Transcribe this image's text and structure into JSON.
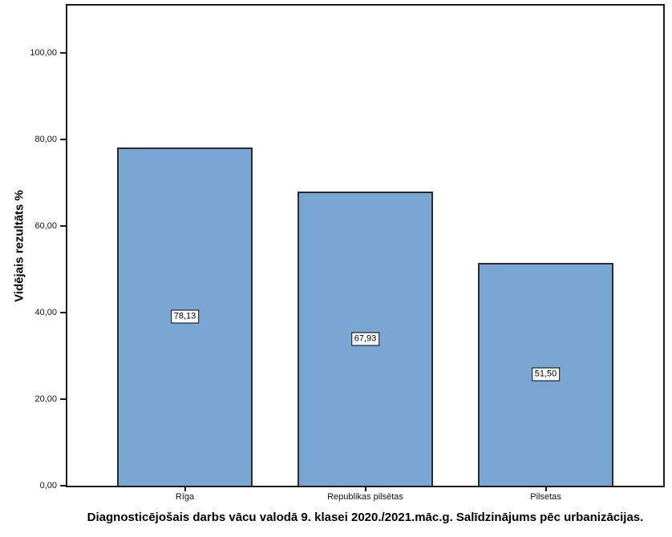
{
  "chart_data": {
    "type": "bar",
    "title": "Diagnosticējošais darbs vācu valodā 9. klasei 2020./2021.māc.g. Salīdzinājums pēc urbanizācijas.",
    "ylabel": "Vidējais rezultāts %",
    "xlabel": "",
    "categories": [
      "Rīga",
      "Republikas pilsētas",
      "Pilsetas"
    ],
    "values": [
      78.13,
      67.93,
      51.5
    ],
    "value_labels": [
      "78,13",
      "67,93",
      "51,50"
    ],
    "ylim": [
      0,
      111
    ],
    "yticks": [
      0,
      20,
      40,
      60,
      80,
      100
    ],
    "ytick_labels": [
      "0,00",
      "20,00",
      "40,00",
      "60,00",
      "80,00",
      "100,00"
    ],
    "grid": false,
    "legend": null,
    "bar_color": "#7AA6D4",
    "bar_border_color": "#2B2B2B",
    "axis_color": "#1C1C1C"
  }
}
